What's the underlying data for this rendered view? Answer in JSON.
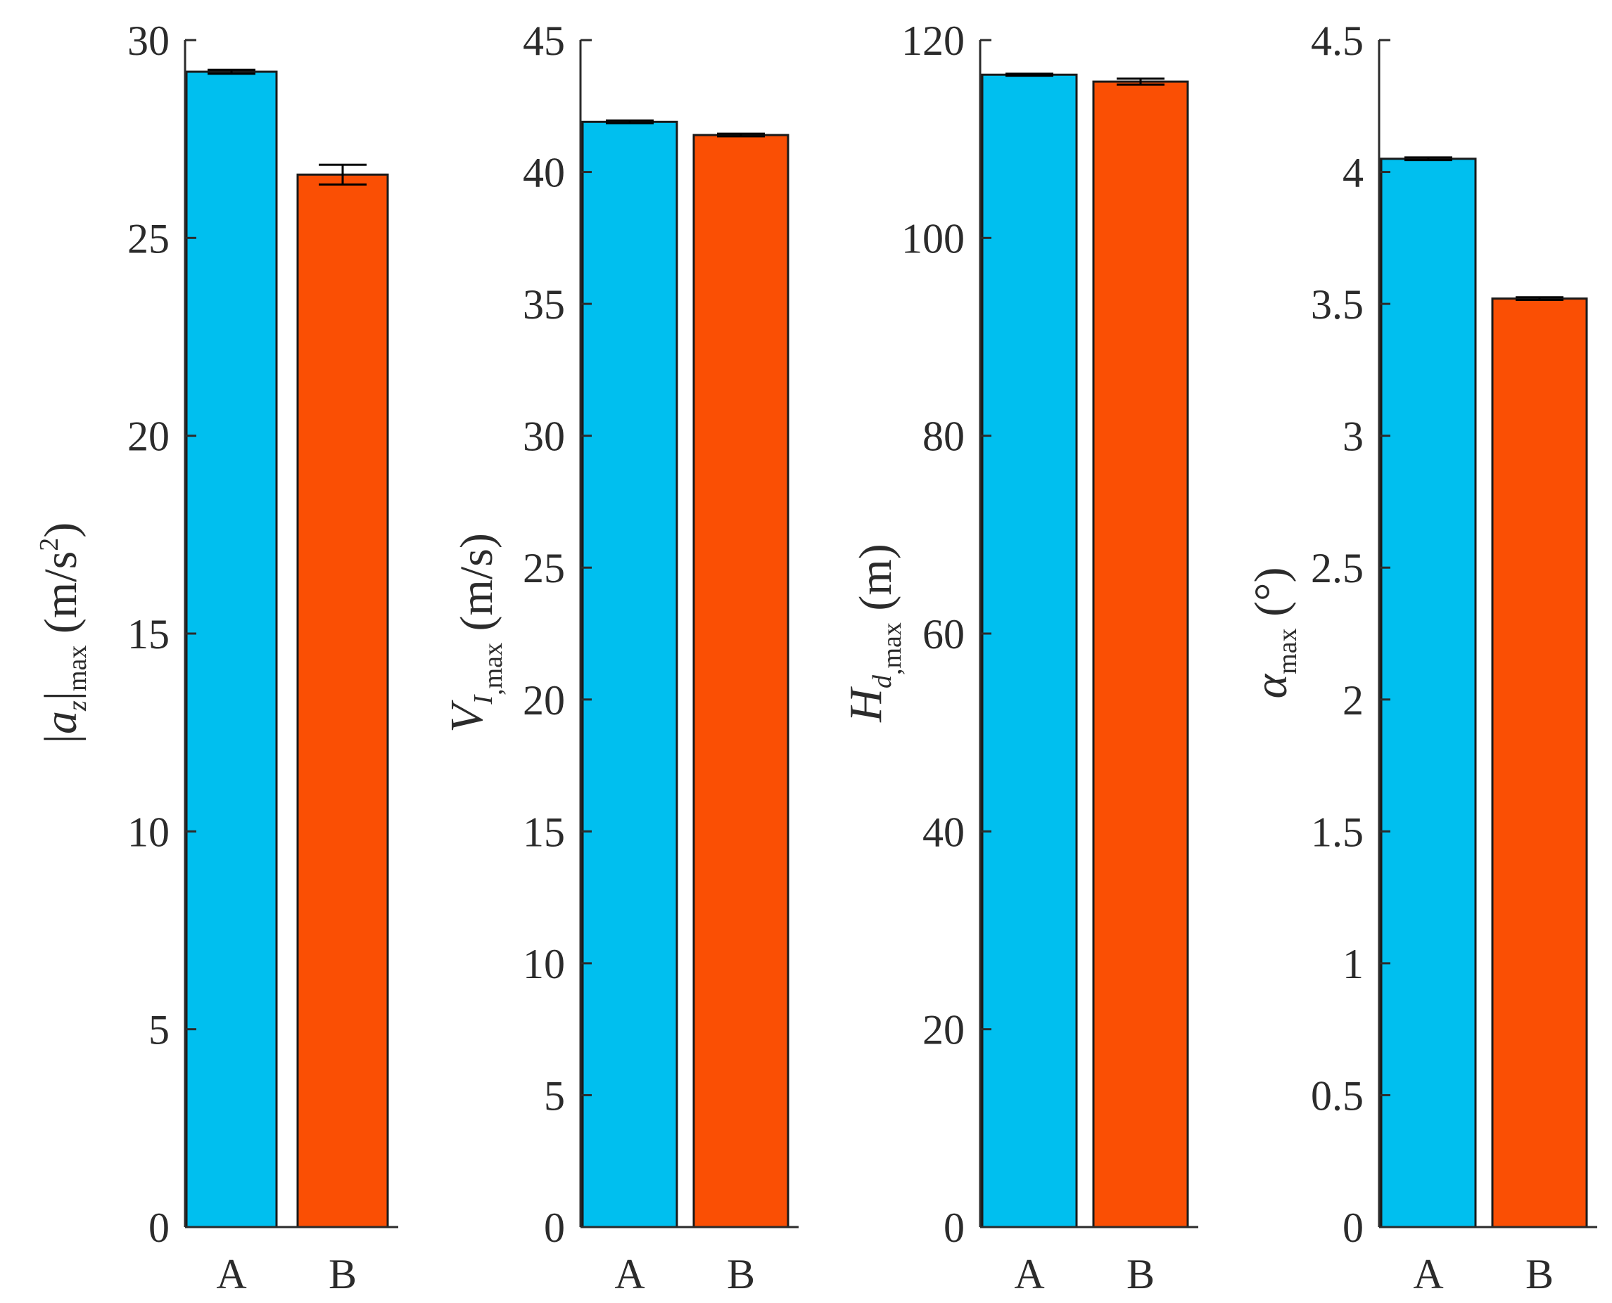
{
  "colors": {
    "A": "#00bfef",
    "B": "#fa4f04",
    "axis": "#2b2b2b"
  },
  "chart_data": [
    {
      "type": "bar",
      "categories": [
        "A",
        "B"
      ],
      "values": [
        29.2,
        26.6
      ],
      "errors": [
        0.05,
        0.25
      ],
      "ylim": [
        0,
        30
      ],
      "yticks": [
        0,
        5,
        10,
        15,
        20,
        25,
        30
      ],
      "ytick_labels": [
        "0",
        "5",
        "10",
        "15",
        "20",
        "25",
        "30"
      ],
      "ylabel": {
        "pre": "|",
        "main": "a",
        "sub1": "z",
        "mid": "|",
        "sub2": "max",
        "unit": "(m/s",
        "sup": "2",
        "close": ")"
      }
    },
    {
      "type": "bar",
      "categories": [
        "A",
        "B"
      ],
      "values": [
        41.9,
        41.4
      ],
      "errors": [
        0.05,
        0.05
      ],
      "ylim": [
        0,
        45
      ],
      "yticks": [
        0,
        5,
        10,
        15,
        20,
        25,
        30,
        35,
        40,
        45
      ],
      "ytick_labels": [
        "0",
        "5",
        "10",
        "15",
        "20",
        "25",
        "30",
        "35",
        "40",
        "45"
      ],
      "ylabel": {
        "main": "V",
        "sub1": "I",
        "sub2": ",max",
        "unit": "(m/s)"
      }
    },
    {
      "type": "bar",
      "categories": [
        "A",
        "B"
      ],
      "values": [
        116.5,
        115.8
      ],
      "errors": [
        0.1,
        0.3
      ],
      "ylim": [
        0,
        120
      ],
      "yticks": [
        0,
        20,
        40,
        60,
        80,
        100,
        120
      ],
      "ytick_labels": [
        "0",
        "20",
        "40",
        "60",
        "80",
        "100",
        "120"
      ],
      "ylabel": {
        "main": "H",
        "sub1": "d",
        "sub2": ",max",
        "unit": "(m)"
      }
    },
    {
      "type": "bar",
      "categories": [
        "A",
        "B"
      ],
      "values": [
        4.05,
        3.52
      ],
      "errors": [
        0.005,
        0.005
      ],
      "ylim": [
        0,
        4.5
      ],
      "yticks": [
        0,
        0.5,
        1,
        1.5,
        2,
        2.5,
        3,
        3.5,
        4,
        4.5
      ],
      "ytick_labels": [
        "0",
        "0.5",
        "1",
        "1.5",
        "2",
        "2.5",
        "3",
        "3.5",
        "4",
        "4.5"
      ],
      "ylabel": {
        "main": "α",
        "sub2": "max",
        "unit": "(°)"
      }
    }
  ]
}
